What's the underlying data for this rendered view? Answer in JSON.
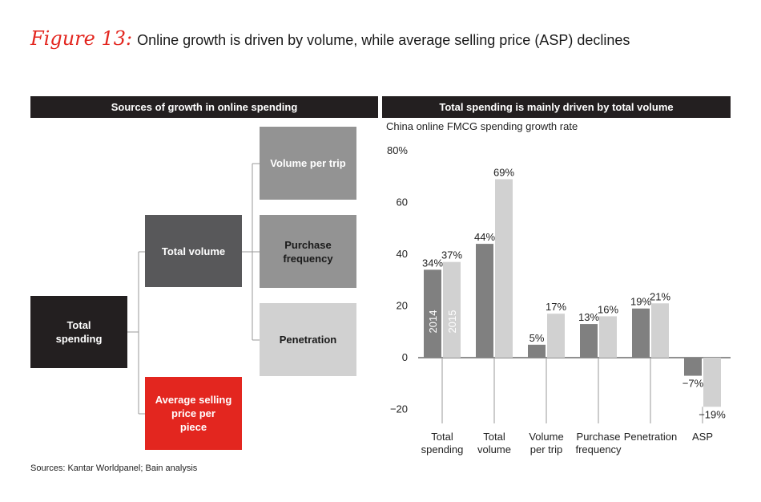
{
  "figure": {
    "label": "Figure 13:",
    "title": "Online growth is driven by volume, while average selling price (ASP) declines"
  },
  "left_panel": {
    "header": "Sources of growth in online spending",
    "boxes": {
      "total_spending": [
        "Total",
        "spending"
      ],
      "total_volume": [
        "Total volume"
      ],
      "asp": [
        "Average selling",
        "price per",
        "piece"
      ],
      "volume_per_trip": [
        "Volume per trip"
      ],
      "purchase_frequency": [
        "Purchase frequency"
      ],
      "penetration": [
        "Penetration"
      ]
    }
  },
  "right_panel": {
    "header": "Total spending is mainly driven by total volume",
    "subtitle": "China online FMCG spending growth rate"
  },
  "colors": {
    "accent_red": "#e3261f",
    "dark": "#231f20",
    "bar_2014": "#808080",
    "bar_2015": "#d1d1d1"
  },
  "chart_data": {
    "type": "bar",
    "title": "China online FMCG spending growth rate",
    "categories": [
      [
        "Total",
        "spending"
      ],
      [
        "Total",
        "volume"
      ],
      [
        "Volume",
        "per trip"
      ],
      [
        "Purchase",
        "frequency"
      ],
      [
        "Penetration"
      ],
      [
        "ASP"
      ]
    ],
    "series": [
      {
        "name": "2014",
        "values": [
          34,
          44,
          5,
          13,
          19,
          -7
        ],
        "labels": [
          "34%",
          "44%",
          "5%",
          "13%",
          "19%",
          "−7%"
        ]
      },
      {
        "name": "2015",
        "values": [
          37,
          69,
          17,
          16,
          21,
          -19
        ],
        "labels": [
          "37%",
          "69%",
          "17%",
          "16%",
          "21%",
          "−19%"
        ]
      }
    ],
    "y_ticks": [
      80,
      60,
      40,
      20,
      0,
      -20
    ],
    "y_tick_labels": [
      "80%",
      "60",
      "40",
      "20",
      "0",
      "−20"
    ],
    "ylim": [
      -20,
      80
    ],
    "legend": "inside-first-bars",
    "grid": false
  },
  "source": "Sources: Kantar Worldpanel; Bain analysis"
}
